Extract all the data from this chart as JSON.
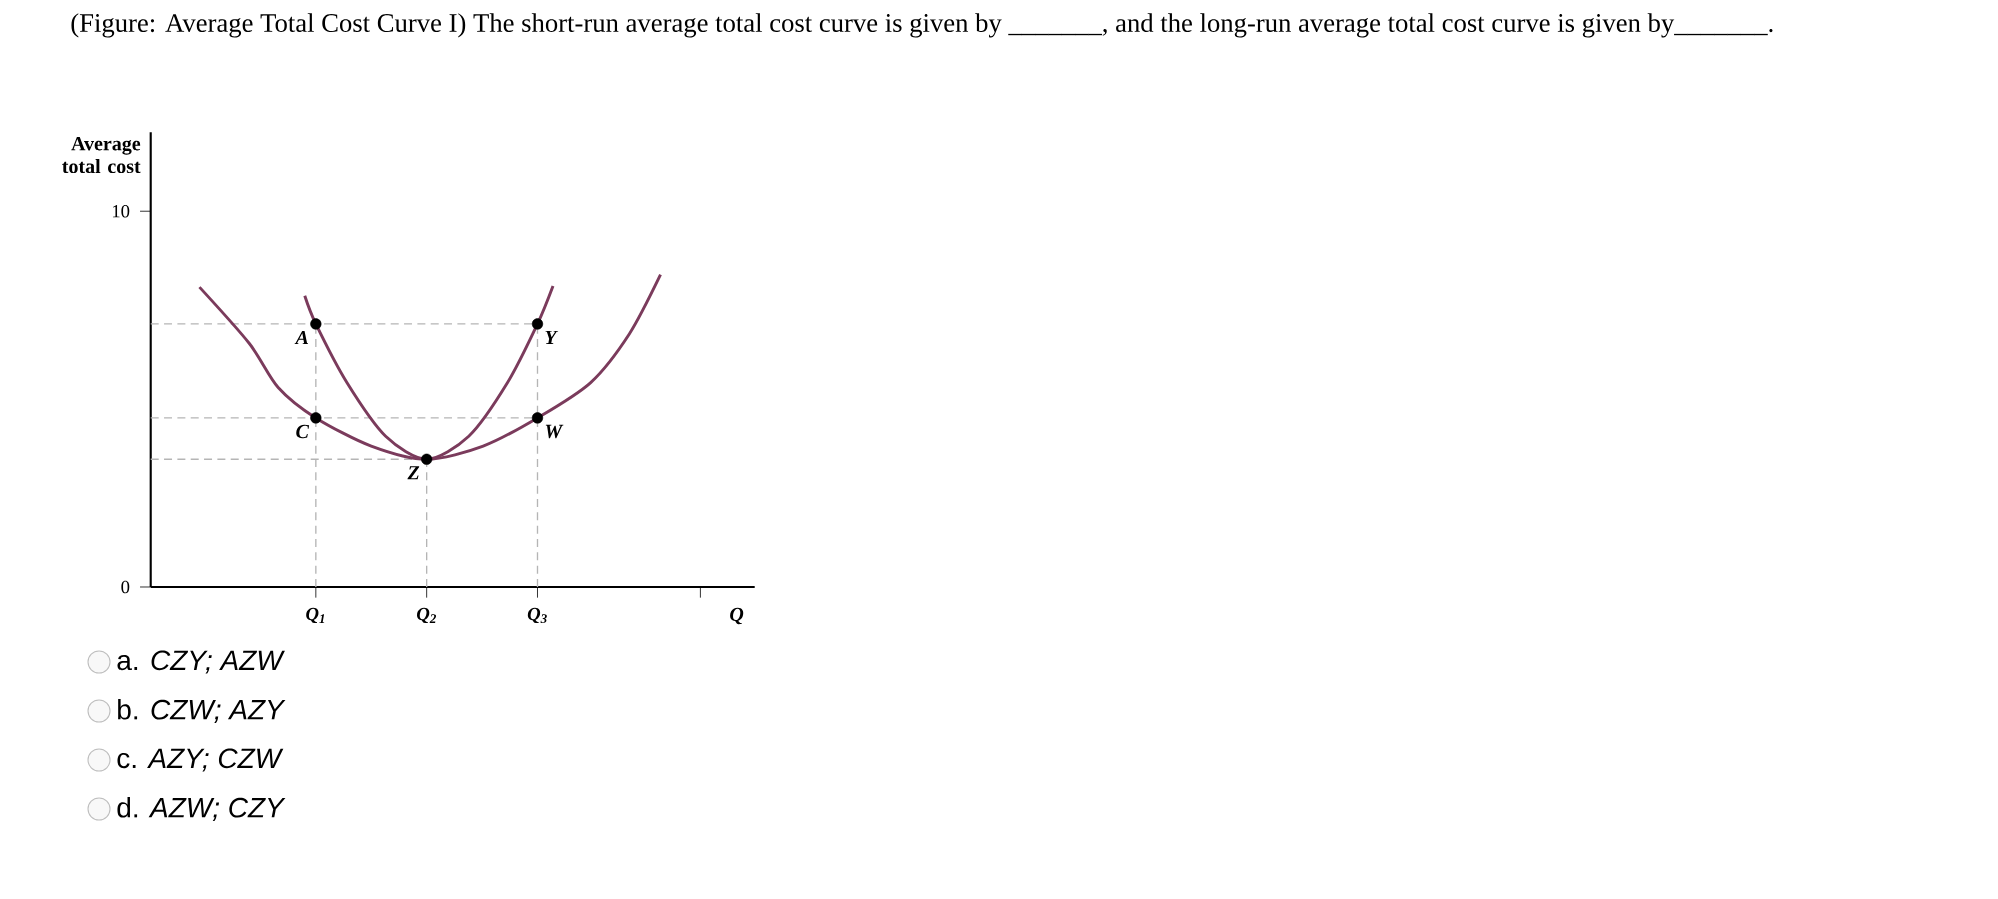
{
  "chart_data": {
    "type": "line",
    "title": "(Figure: Average Total Cost Curve I) The short-run average total cost curve is given by _______, and the long-run average total cost curve is given by_______.",
    "xlabel": "Q",
    "ylabel": "Average total cost",
    "xlim": [
      -0.49,
      4.96
    ],
    "ylim": [
      0,
      12.1
    ],
    "xticks": [
      {
        "value": 1,
        "label": "Q$_{1}$"
      },
      {
        "value": 2,
        "label": "Q$_{2}$"
      },
      {
        "value": 3,
        "label": "Q$_{3}$"
      },
      {
        "value": 4.47,
        "label": null
      }
    ],
    "yticks": [
      0,
      10
    ],
    "series": [
      {
        "color": "#7b3b5c",
        "marker": "none",
        "line_style": "solid",
        "x": [
          -0.05,
          0.4,
          0.66,
          1,
          1.5,
          2,
          2.51,
          3,
          3.48,
          3.83,
          4.11
        ],
        "values": [
          7.98,
          6.48,
          5.31,
          4.5,
          3.75,
          3.4,
          3.75,
          4.5,
          5.44,
          6.74,
          8.31
        ]
      },
      {
        "color": "#7b3b5c",
        "marker": "none",
        "line_style": "solid",
        "x": [
          0.9,
          1,
          1.28,
          1.63,
          2,
          2.38,
          2.73,
          3,
          3.14
        ],
        "values": [
          7.75,
          7.0,
          5.44,
          4.01,
          3.4,
          4.01,
          5.44,
          7.0,
          8.01
        ]
      },
      {
        "type": "scatter",
        "color": "#000000",
        "marker": "circle",
        "x": [
          1,
          1,
          2,
          3,
          3
        ],
        "values": [
          7.0,
          4.5,
          3.4,
          7.0,
          4.5
        ]
      }
    ],
    "ref_lines": [
      {
        "axis": "y",
        "value": 7.0,
        "color": "#b5b5b5",
        "line_style": "dashed"
      },
      {
        "axis": "y",
        "value": 4.5,
        "color": "#b5b5b5",
        "line_style": "dashed"
      },
      {
        "axis": "y",
        "value": 3.4,
        "color": "#b5b5b5",
        "line_style": "dashed"
      },
      {
        "axis": "x",
        "value": 1,
        "color": "#b5b5b5",
        "line_style": "dashed"
      },
      {
        "axis": "x",
        "value": 2,
        "color": "#b5b5b5",
        "line_style": "dashed"
      },
      {
        "axis": "x",
        "value": 3,
        "color": "#b5b5b5",
        "line_style": "dashed"
      }
    ],
    "annotations": [
      {
        "text": "A",
        "x": 1,
        "y": 7.0
      },
      {
        "text": "C",
        "x": 1,
        "y": 4.5
      },
      {
        "text": "Z",
        "x": 2,
        "y": 3.4
      },
      {
        "text": "Y",
        "x": 3,
        "y": 7.0
      },
      {
        "text": "W",
        "x": 3,
        "y": 4.5
      },
      "a. *CZY; AZW*",
      "b. *CZW; AZY*",
      "c. *AZY; CZW*",
      "d. *AZW; CZY*"
    ]
  }
}
